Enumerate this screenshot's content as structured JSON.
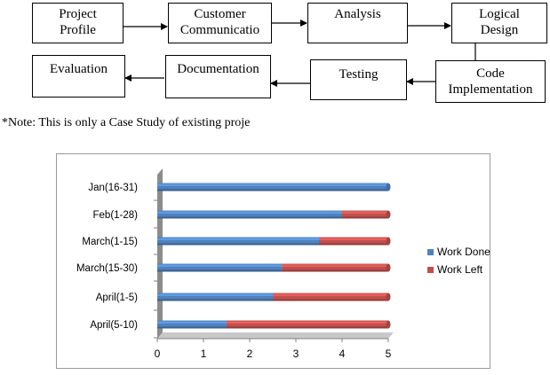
{
  "flowchart": {
    "steps": [
      {
        "id": "project_profile",
        "label": "Project\nProfile"
      },
      {
        "id": "customer_communication",
        "label": "Customer\nCommunicatio"
      },
      {
        "id": "analysis",
        "label": "Analysis"
      },
      {
        "id": "logical_design",
        "label": "Logical\nDesign"
      },
      {
        "id": "code_implementation",
        "label": "Code\nImplementation"
      },
      {
        "id": "testing",
        "label": "Testing"
      },
      {
        "id": "documentation",
        "label": "Documentation"
      },
      {
        "id": "evaluation",
        "label": "Evaluation"
      }
    ],
    "note": "*Note: This is only a Case Study of existing proje"
  },
  "chart_data": {
    "type": "bar",
    "orientation": "horizontal",
    "stacked": true,
    "style": "3d-cylinder",
    "categories": [
      "Jan(16-31)",
      "Feb(1-28)",
      "March(1-15)",
      "March(15-30)",
      "April(1-5)",
      "April(5-10)"
    ],
    "series": [
      {
        "name": "Work Done",
        "color": "#4f81bd",
        "values": [
          5,
          4,
          3.5,
          2.7,
          2.5,
          1.5
        ]
      },
      {
        "name": "Work Left",
        "color": "#c0504d",
        "values": [
          0,
          1,
          1.5,
          2.3,
          2.5,
          3.5
        ]
      }
    ],
    "xlim": [
      0,
      5
    ],
    "xticks": [
      "0",
      "1",
      "2",
      "3",
      "4",
      "5"
    ],
    "grid": false,
    "legend": "right"
  }
}
